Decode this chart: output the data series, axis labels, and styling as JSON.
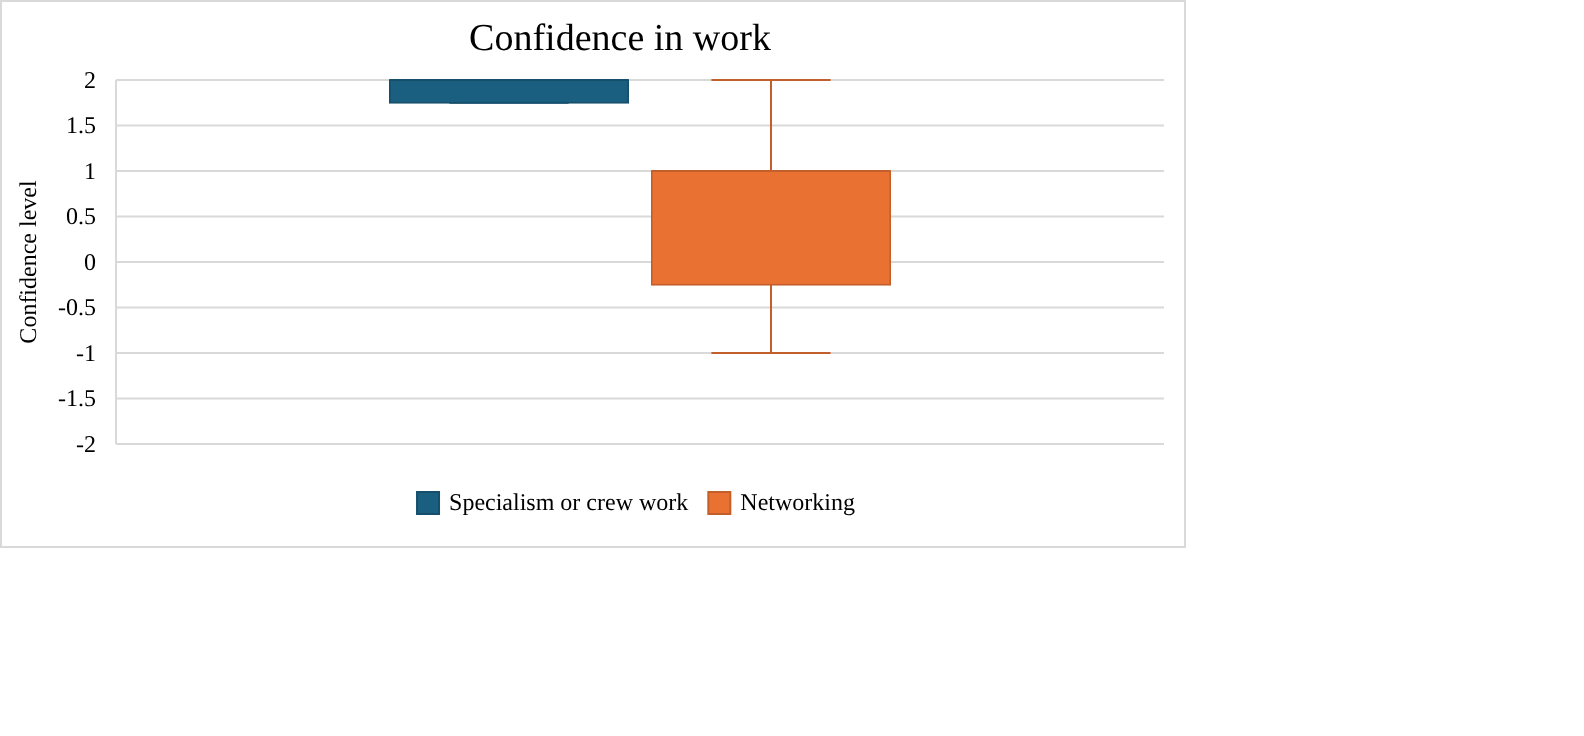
{
  "chart_data": {
    "type": "box",
    "title": "Confidence in work",
    "ylabel": "Confidence level",
    "categories": [
      null
    ],
    "series": [
      {
        "name": "Specialism or crew work",
        "color": "#1a5e80",
        "boxes": [
          {
            "low": 1.75,
            "q1": 1.75,
            "median": 2,
            "q3": 2,
            "high": 2
          }
        ]
      },
      {
        "name": "Networking",
        "color": "#e97132",
        "boxes": [
          {
            "low": -1,
            "q1": -0.25,
            "median": 1,
            "q3": 1,
            "high": 2
          }
        ]
      }
    ],
    "ylim": [
      -2,
      2
    ],
    "yticks": [
      -2,
      -1.5,
      -1,
      -0.5,
      0,
      0.5,
      1,
      1.5,
      2
    ],
    "grid": "y",
    "legend": "bottom"
  }
}
